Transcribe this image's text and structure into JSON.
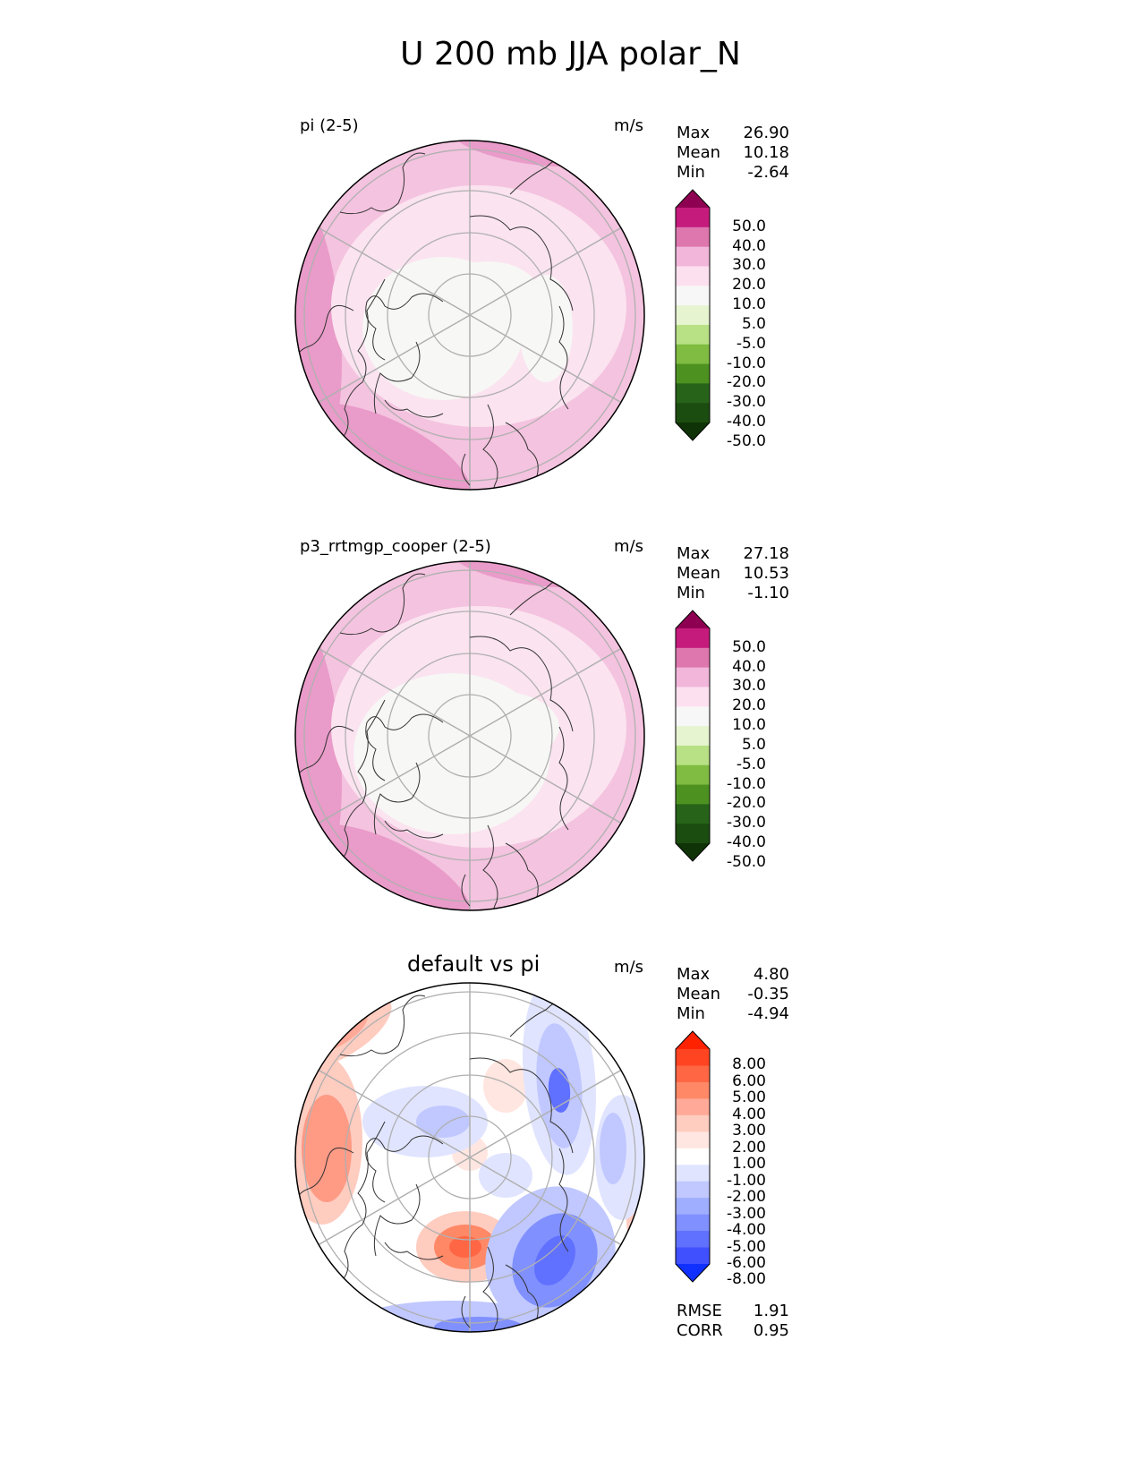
{
  "figure": {
    "title": "U 200 mb JJA polar_N"
  },
  "panels": [
    {
      "label": "pi (2-5)",
      "units": "m/s",
      "stats": [
        {
          "name": "Max",
          "value": "26.90"
        },
        {
          "name": "Mean",
          "value": "10.18"
        },
        {
          "name": "Min",
          "value": "-2.64"
        }
      ],
      "colorbar": {
        "levels": [
          "50.0",
          "40.0",
          "30.0",
          "20.0",
          "10.0",
          "5.0",
          "-5.0",
          "-10.0",
          "-20.0",
          "-30.0",
          "-40.0",
          "-50.0"
        ],
        "colors": [
          "#8e0152",
          "#c51b7d",
          "#de77ae",
          "#f1b6da",
          "#fde0ef",
          "#f7f7f7",
          "#e6f5d0",
          "#b8e186",
          "#7fbc41",
          "#4d9221",
          "#276419",
          "#1b4d10",
          "#0f3306"
        ]
      }
    },
    {
      "label": "p3_rrtmgp_cooper (2-5)",
      "units": "m/s",
      "stats": [
        {
          "name": "Max",
          "value": "27.18"
        },
        {
          "name": "Mean",
          "value": "10.53"
        },
        {
          "name": "Min",
          "value": "-1.10"
        }
      ],
      "colorbar": {
        "levels": [
          "50.0",
          "40.0",
          "30.0",
          "20.0",
          "10.0",
          "5.0",
          "-5.0",
          "-10.0",
          "-20.0",
          "-30.0",
          "-40.0",
          "-50.0"
        ],
        "colors": [
          "#8e0152",
          "#c51b7d",
          "#de77ae",
          "#f1b6da",
          "#fde0ef",
          "#f7f7f7",
          "#e6f5d0",
          "#b8e186",
          "#7fbc41",
          "#4d9221",
          "#276419",
          "#1b4d10",
          "#0f3306"
        ]
      }
    },
    {
      "title": "default vs pi",
      "units": "m/s",
      "stats": [
        {
          "name": "Max",
          "value": "4.80"
        },
        {
          "name": "Mean",
          "value": "-0.35"
        },
        {
          "name": "Min",
          "value": "-4.94"
        }
      ],
      "extra_stats": [
        {
          "name": "RMSE",
          "value": "1.91"
        },
        {
          "name": "CORR",
          "value": "0.95"
        }
      ],
      "colorbar": {
        "levels": [
          "8.00",
          "6.00",
          "5.00",
          "4.00",
          "3.00",
          "2.00",
          "1.00",
          "-1.00",
          "-2.00",
          "-3.00",
          "-4.00",
          "-5.00",
          "-6.00",
          "-8.00"
        ],
        "colors": [
          "#ff2200",
          "#ff4422",
          "#ff6644",
          "#ff8866",
          "#ffaa99",
          "#ffccc0",
          "#ffe6e0",
          "#ffffff",
          "#e0e4ff",
          "#c0c8ff",
          "#a0aeff",
          "#8090ff",
          "#6070ff",
          "#4050ff",
          "#1030ff"
        ]
      }
    }
  ],
  "colors": {
    "ocean_base_1": "#f4c3df",
    "ocean_base_2": "#f4c3df",
    "diff_base": "#ffffff",
    "grid": "#b0b0b0",
    "coast": "#333333"
  }
}
